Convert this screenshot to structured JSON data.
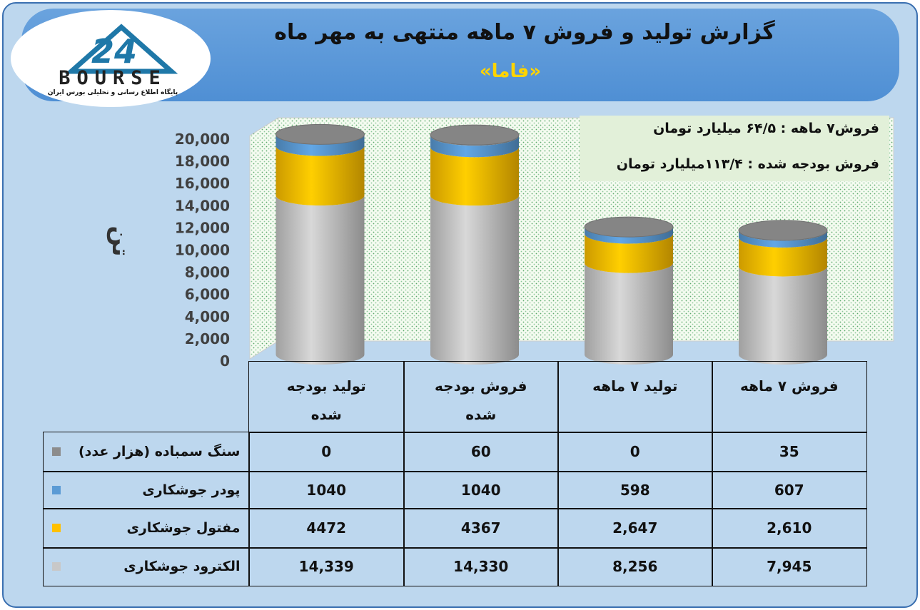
{
  "logo": {
    "number": "24",
    "name": "BOURSE",
    "tagline": "پایگاه اطلاع رسانی و تحلیلی بورس ایران"
  },
  "chart_data": {
    "type": "bar",
    "stacked": true,
    "title": "گزارش تولید و فروش ۷ ماهه منتهی به مهر ماه",
    "subtitle": "«فاما»",
    "y_label": "تن",
    "annotations": [
      "فروش۷ ماهه : ۶۴/۵ میلیارد تومان",
      "فروش بودجه شده : ۱۱۳/۴میلیارد تومان"
    ],
    "categories": [
      "تولید بودجه شده",
      "فروش بودجه شده",
      "تولید ۷ ماهه",
      "فروش ۷ ماهه"
    ],
    "series": [
      {
        "name": "الکترود جوشکاری",
        "color": "#c8c8c8",
        "values": [
          14339,
          14330,
          8256,
          7945
        ],
        "value_labels": [
          "14,339",
          "14,330",
          "8,256",
          "7,945"
        ]
      },
      {
        "name": "مفتول جوشکاری",
        "color": "#ffc000",
        "values": [
          4472,
          4367,
          2647,
          2610
        ],
        "value_labels": [
          "4472",
          "4367",
          "2,647",
          "2,610"
        ]
      },
      {
        "name": "پودر جوشکاری",
        "color": "#5b9bd5",
        "values": [
          1040,
          1040,
          598,
          607
        ]
      },
      {
        "name": "سنگ سمباده (هزار عدد)",
        "color": "#8c8c8c",
        "values": [
          0,
          60,
          0,
          35
        ]
      }
    ],
    "ylim": [
      0,
      20000
    ],
    "yticks": [
      0,
      {
        "value": 2000,
        "label": "2,000"
      },
      {
        "value": 4000,
        "label": "4,000"
      },
      {
        "value": 6000,
        "label": "6,000"
      },
      {
        "value": 8000,
        "label": "8,000"
      },
      {
        "value": 10000,
        "label": "10,000"
      },
      {
        "value": 12000,
        "label": "12,000"
      },
      {
        "value": 14000,
        "label": "14,000"
      },
      {
        "value": 16000,
        "label": "16,000"
      },
      {
        "value": 18000,
        "label": "18,000"
      },
      {
        "value": 20000,
        "label": "20,000"
      }
    ],
    "grid": false
  }
}
